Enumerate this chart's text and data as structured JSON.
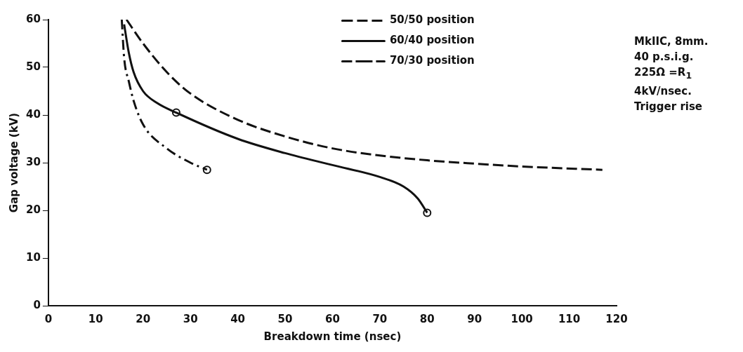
{
  "chart_data": {
    "type": "line",
    "xlabel": "Breakdown time (nsec)",
    "ylabel": "Gap voltage (kV)",
    "xlim": [
      0,
      120
    ],
    "xticks": [
      0,
      10,
      20,
      30,
      40,
      50,
      60,
      70,
      80,
      90,
      100,
      110,
      120
    ],
    "ylim": [
      0,
      60
    ],
    "yticks": [
      0,
      10,
      20,
      30,
      40,
      50,
      60
    ],
    "grid": false,
    "legend": "top right",
    "series": [
      {
        "name": "50/50 position",
        "color": "#111111",
        "line_style": "dashed",
        "marker": "none",
        "x": [
          16.5,
          20,
          25,
          30,
          40,
          50,
          60,
          70,
          80,
          90,
          100,
          117
        ],
        "values": [
          60,
          55,
          49,
          44.5,
          39,
          35.5,
          33,
          31.5,
          30.5,
          29.8,
          29.2,
          28.5
        ]
      },
      {
        "name": "60/40 position",
        "color": "#111111",
        "line_style": "solid",
        "marker": "none",
        "x": [
          16,
          17,
          18,
          20,
          23,
          27,
          40,
          50,
          60,
          70,
          75,
          78,
          80
        ],
        "values": [
          59,
          53,
          49,
          45,
          42.5,
          40.5,
          35,
          32,
          29.5,
          27,
          25,
          22.5,
          19.5
        ]
      },
      {
        "name": "70/30 position",
        "color": "#111111",
        "line_style": "dashdot",
        "marker": "none",
        "x": [
          15.5,
          16,
          17,
          18,
          20,
          25,
          30,
          33.5
        ],
        "values": [
          60,
          52,
          47,
          43,
          38,
          33,
          30,
          28.5
        ]
      },
      {
        "type": "scatter",
        "color": "#111111",
        "marker": "circle",
        "x": [
          27,
          80,
          33.5
        ],
        "values": [
          40.5,
          19.5,
          28.5
        ]
      }
    ],
    "annotations": [
      "MkIIC, 8mm.",
      "40 p.s.i.g.",
      "225Ω =R$_{1}$",
      "4kV/nsec.",
      "Trigger rise"
    ]
  }
}
